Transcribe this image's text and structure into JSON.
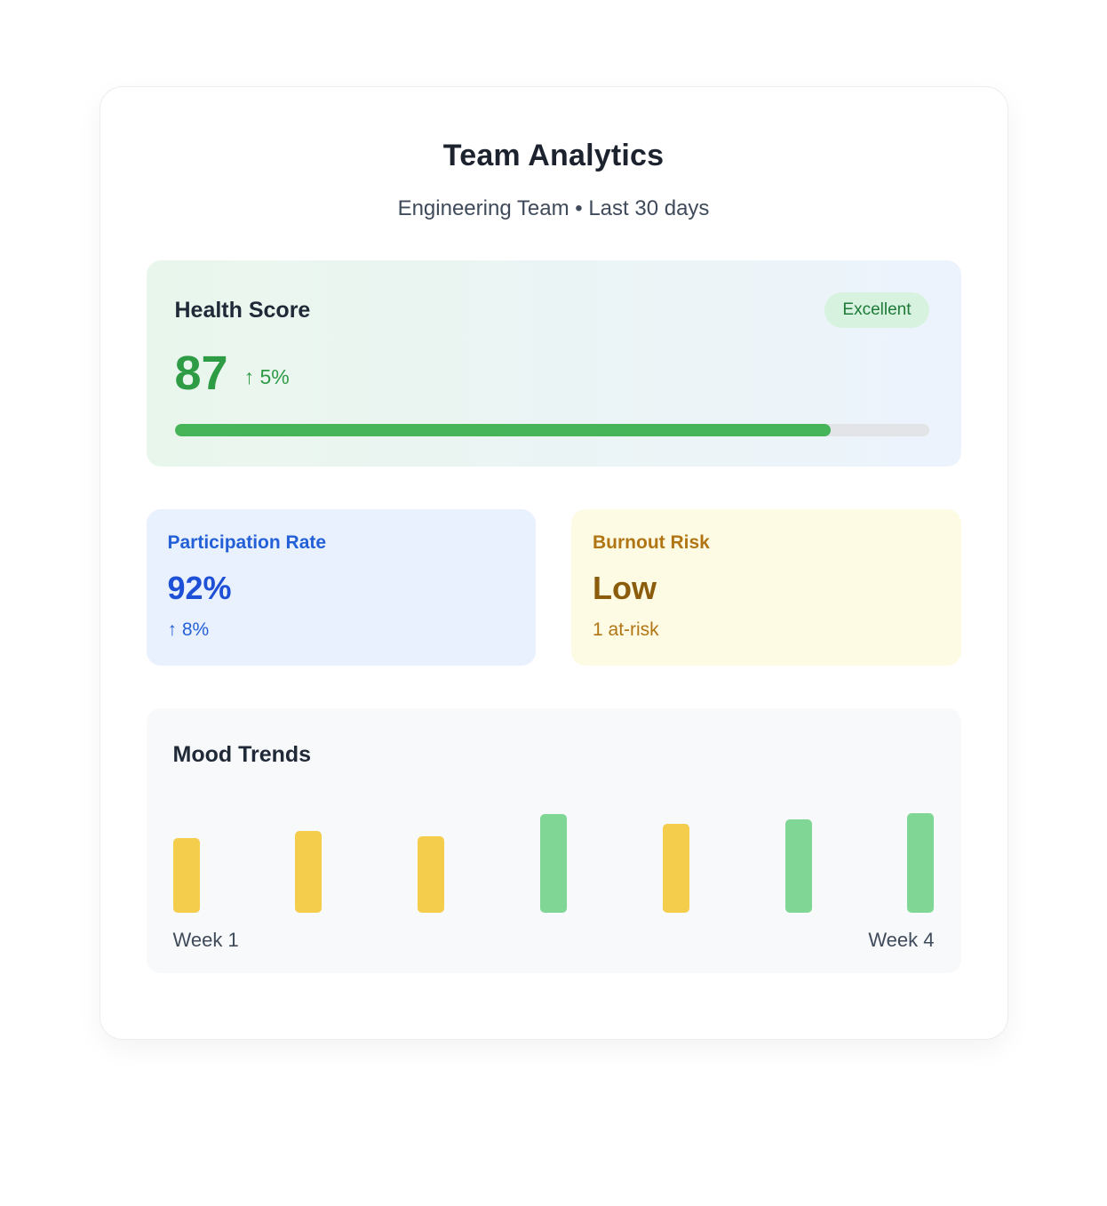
{
  "page": {
    "title": "Team Analytics",
    "subtitle": "Engineering Team • Last 30 days"
  },
  "health": {
    "label": "Health Score",
    "badge": "Excellent",
    "score": "87",
    "delta": "↑ 5%",
    "progress_percent": 87
  },
  "participation": {
    "label": "Participation Rate",
    "value": "92%",
    "delta": "↑ 8%"
  },
  "burnout": {
    "label": "Burnout Risk",
    "value": "Low",
    "detail": "1 at-risk"
  },
  "mood": {
    "label": "Mood Trends",
    "start_label": "Week 1",
    "end_label": "Week 4"
  },
  "colors": {
    "health_green": "#2e9b45",
    "progress_fill": "#46b559",
    "badge_bg": "#d7f2de",
    "badge_text": "#1d7a38",
    "participation_blue": "#2360d8",
    "burnout_amber": "#b17513",
    "bar_yellow": "#f5cd4c",
    "bar_green": "#80d795"
  },
  "chart_data": {
    "type": "bar",
    "title": "Mood Trends",
    "categories": [
      "Week 1",
      "",
      "",
      "",
      "",
      "",
      "Week 4"
    ],
    "values": [
      62,
      68,
      64,
      82,
      74,
      78,
      83
    ],
    "bar_colors": [
      "yellow",
      "yellow",
      "yellow",
      "green",
      "yellow",
      "green",
      "green"
    ],
    "xlabel": "",
    "ylabel": "",
    "ylim": [
      0,
      100
    ],
    "grid": false,
    "legend": "none"
  }
}
